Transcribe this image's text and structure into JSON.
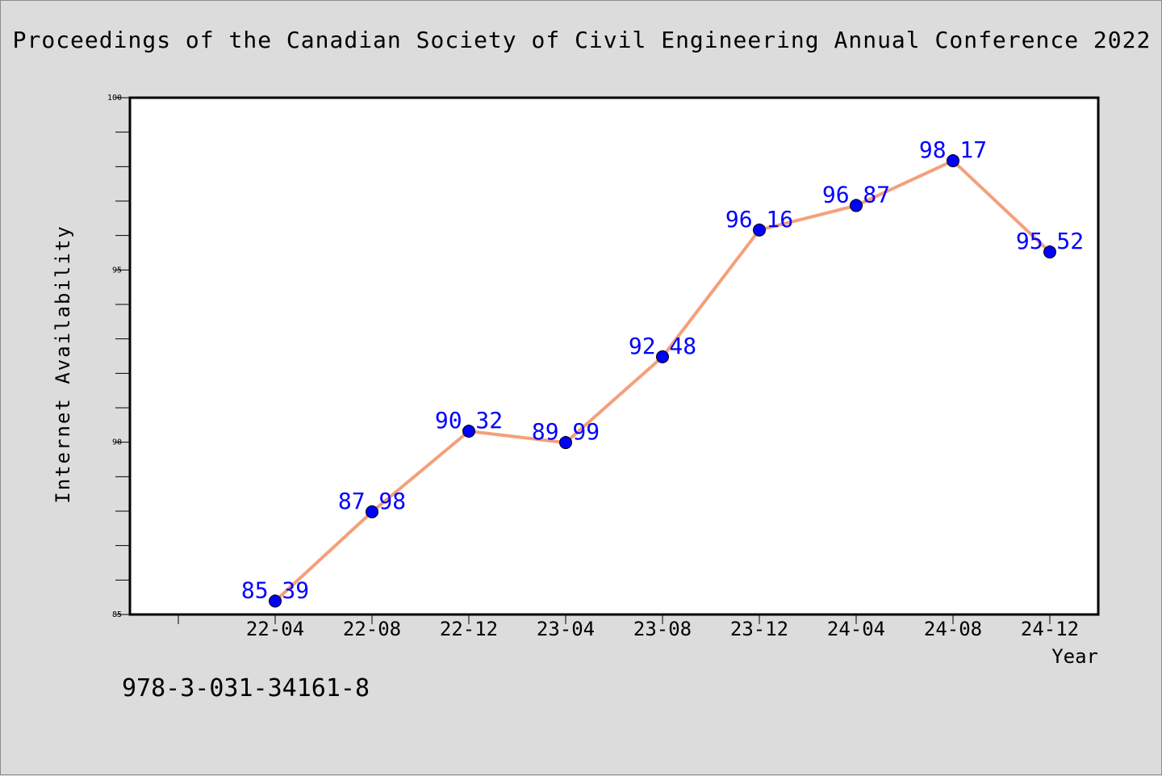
{
  "header": {
    "title": "Proceedings of the Canadian Society of Civil Engineering Annual Conference 2022"
  },
  "footer": {
    "isbn": "978-3-031-34161-8"
  },
  "colors": {
    "line": "#f4a07a",
    "marker": "#0000ff",
    "label": "#0000ff",
    "plot_bg": "#ffffff",
    "page_bg": "#dcdcdc"
  },
  "chart_data": {
    "type": "line",
    "title": "Proceedings of the Canadian Society of Civil Engineering Annual Conference 2022",
    "xlabel": "Year",
    "ylabel": "Internet Availability",
    "categories": [
      "22-04",
      "22-08",
      "22-12",
      "23-04",
      "23-08",
      "23-12",
      "24-04",
      "24-08",
      "24-12"
    ],
    "values": [
      85.39,
      87.98,
      90.32,
      89.99,
      92.48,
      96.16,
      96.87,
      98.17,
      95.52
    ],
    "data_labels": [
      "85.39",
      "87.98",
      "90.32",
      "89.99",
      "92.48",
      "96.16",
      "96.87",
      "98.17",
      "95.52"
    ],
    "ylim": [
      85,
      100
    ],
    "yticks": [
      85,
      90,
      95,
      100
    ],
    "grid": false,
    "legend": "none"
  }
}
